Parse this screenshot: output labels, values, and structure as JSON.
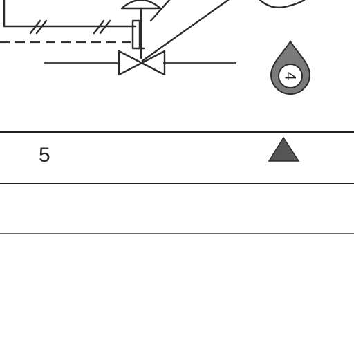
{
  "diagram": {
    "flow_item_label": "4",
    "table": {
      "rows": [
        {
          "number": "5",
          "symbol": "filled-triangle"
        }
      ]
    }
  },
  "colors": {
    "line": "#2b2b2b",
    "pipe": "#4a4a4a",
    "symbol_fill": "#555555",
    "background": "#ffffff"
  }
}
